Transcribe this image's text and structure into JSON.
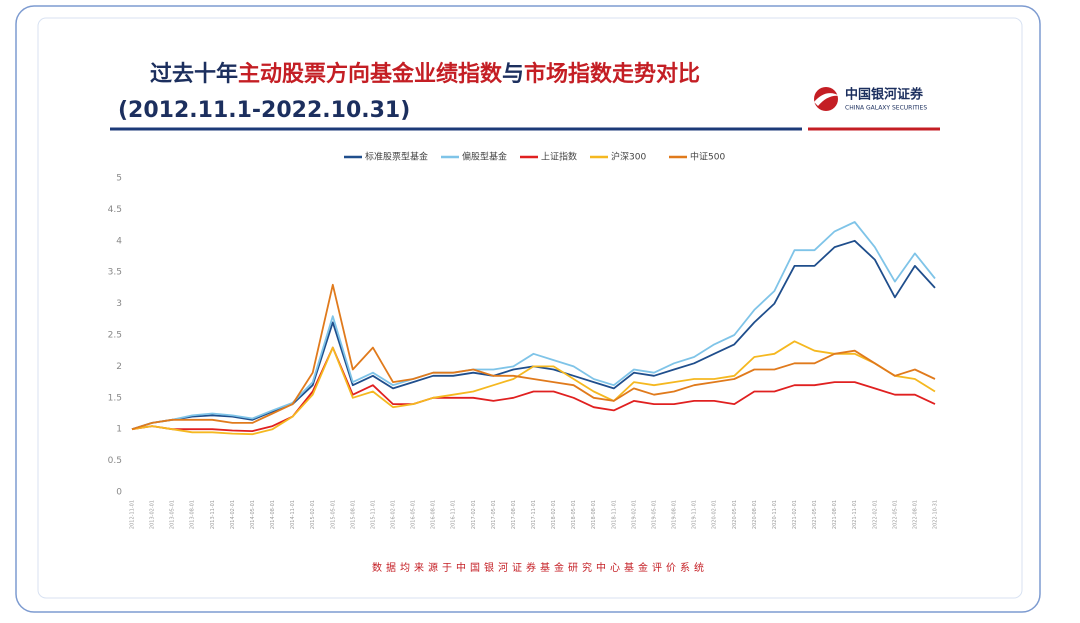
{
  "chart_data": {
    "type": "line",
    "title": [
      "过去十年",
      "主动股票方向基金业绩指数",
      "与",
      "市场指数走势对比"
    ],
    "subtitle": "(2012.11.1-2022.10.31)",
    "brand": {
      "name": "中国银河证券",
      "name_en": "CHINA GALAXY SECURITIES"
    },
    "footer": "数据均来源于中国银河证券基金研究中心基金评价系统",
    "x": [
      "2012-11-01",
      "2013-02-01",
      "2013-05-01",
      "2013-08-01",
      "2013-11-01",
      "2014-02-01",
      "2014-05-01",
      "2014-08-01",
      "2014-11-01",
      "2015-02-01",
      "2015-05-01",
      "2015-08-01",
      "2015-11-01",
      "2016-02-01",
      "2016-05-01",
      "2016-08-01",
      "2016-11-01",
      "2017-02-01",
      "2017-05-01",
      "2017-08-01",
      "2017-11-01",
      "2018-02-01",
      "2018-05-01",
      "2018-08-01",
      "2018-11-01",
      "2019-02-01",
      "2019-05-01",
      "2019-08-01",
      "2019-11-01",
      "2020-02-01",
      "2020-05-01",
      "2020-08-01",
      "2020-11-01",
      "2021-02-01",
      "2021-05-01",
      "2021-08-01",
      "2021-11-01",
      "2022-02-01",
      "2022-05-01",
      "2022-08-01",
      "2022-10-31"
    ],
    "series": [
      {
        "name": "标准股票型基金",
        "color": "#1f4e8c",
        "values": [
          1.0,
          1.1,
          1.15,
          1.2,
          1.22,
          1.2,
          1.15,
          1.28,
          1.4,
          1.7,
          2.7,
          1.7,
          1.85,
          1.65,
          1.75,
          1.85,
          1.85,
          1.9,
          1.85,
          1.95,
          2.0,
          1.95,
          1.85,
          1.75,
          1.65,
          1.9,
          1.85,
          1.95,
          2.05,
          2.2,
          2.35,
          2.7,
          3.0,
          3.6,
          3.6,
          3.9,
          4.0,
          3.7,
          3.1,
          3.6,
          3.25
        ]
      },
      {
        "name": "偏股型基金",
        "color": "#7fc4e8",
        "values": [
          1.0,
          1.1,
          1.15,
          1.22,
          1.25,
          1.22,
          1.17,
          1.3,
          1.42,
          1.75,
          2.8,
          1.75,
          1.9,
          1.7,
          1.8,
          1.9,
          1.9,
          1.95,
          1.95,
          2.0,
          2.2,
          2.1,
          2.0,
          1.8,
          1.7,
          1.95,
          1.9,
          2.05,
          2.15,
          2.35,
          2.5,
          2.9,
          3.2,
          3.85,
          3.85,
          4.15,
          4.3,
          3.9,
          3.35,
          3.8,
          3.4
        ]
      },
      {
        "name": "上证指数",
        "color": "#e02020",
        "values": [
          1.0,
          1.05,
          1.0,
          1.0,
          1.0,
          0.98,
          0.97,
          1.05,
          1.2,
          1.6,
          2.3,
          1.55,
          1.7,
          1.4,
          1.4,
          1.5,
          1.5,
          1.5,
          1.45,
          1.5,
          1.6,
          1.6,
          1.5,
          1.35,
          1.3,
          1.45,
          1.4,
          1.4,
          1.45,
          1.45,
          1.4,
          1.6,
          1.6,
          1.7,
          1.7,
          1.75,
          1.75,
          1.65,
          1.55,
          1.55,
          1.4
        ]
      },
      {
        "name": "沪深300",
        "color": "#f5b820",
        "values": [
          1.0,
          1.05,
          1.0,
          0.95,
          0.95,
          0.93,
          0.92,
          1.0,
          1.2,
          1.55,
          2.3,
          1.5,
          1.6,
          1.35,
          1.4,
          1.5,
          1.55,
          1.6,
          1.7,
          1.8,
          2.0,
          2.0,
          1.8,
          1.6,
          1.45,
          1.75,
          1.7,
          1.75,
          1.8,
          1.8,
          1.85,
          2.15,
          2.2,
          2.4,
          2.25,
          2.2,
          2.2,
          2.05,
          1.85,
          1.8,
          1.6
        ]
      },
      {
        "name": "中证500",
        "color": "#e07a1c",
        "values": [
          1.0,
          1.1,
          1.15,
          1.15,
          1.15,
          1.1,
          1.1,
          1.25,
          1.4,
          1.9,
          3.3,
          1.95,
          2.3,
          1.75,
          1.8,
          1.9,
          1.9,
          1.95,
          1.85,
          1.85,
          1.8,
          1.75,
          1.7,
          1.5,
          1.45,
          1.65,
          1.55,
          1.6,
          1.7,
          1.75,
          1.8,
          1.95,
          1.95,
          2.05,
          2.05,
          2.2,
          2.25,
          2.05,
          1.85,
          1.95,
          1.8
        ]
      }
    ],
    "ylim": [
      0,
      5
    ],
    "yticks": [
      0,
      0.5,
      1,
      1.5,
      2,
      2.5,
      3,
      3.5,
      4,
      4.5,
      5
    ],
    "grid": false,
    "legend": "top"
  }
}
